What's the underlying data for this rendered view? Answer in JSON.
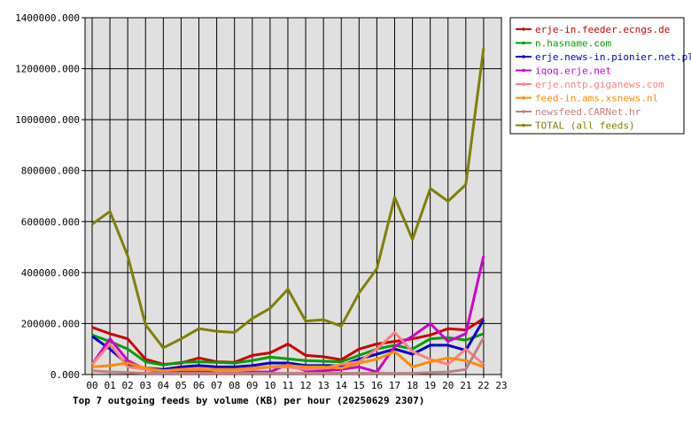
{
  "chart_data": {
    "type": "line",
    "title": "Top 7 outgoing feeds by volume (KB) per hour (20250629 2307)",
    "xlabel": "",
    "ylabel": "",
    "categories": [
      "00",
      "01",
      "02",
      "03",
      "04",
      "05",
      "06",
      "07",
      "08",
      "09",
      "10",
      "11",
      "12",
      "13",
      "14",
      "15",
      "16",
      "17",
      "18",
      "19",
      "20",
      "21",
      "22",
      "23"
    ],
    "y_tick_labels": [
      "0.000",
      "200000.000",
      "400000.000",
      "600000.000",
      "800000.000",
      "1000000.000",
      "1200000.000",
      "1400000.000"
    ],
    "ylim": [
      0,
      1400000
    ],
    "grid": true,
    "legend_position": "top-right",
    "plot_background": "#e0e0e0",
    "series": [
      {
        "name": "erje-in.feeder.ecngs.de",
        "color": "#cc0000",
        "values": [
          185000,
          160000,
          140000,
          60000,
          40000,
          45000,
          65000,
          50000,
          48000,
          75000,
          85000,
          120000,
          75000,
          70000,
          58000,
          100000,
          120000,
          130000,
          140000,
          155000,
          180000,
          175000,
          220000,
          null
        ]
      },
      {
        "name": "n.hasname.com",
        "color": "#00a000",
        "values": [
          155000,
          130000,
          100000,
          50000,
          38000,
          48000,
          50000,
          48000,
          45000,
          55000,
          68000,
          62000,
          55000,
          52000,
          50000,
          75000,
          100000,
          115000,
          100000,
          140000,
          145000,
          135000,
          160000,
          null
        ]
      },
      {
        "name": "erje.news-in.pionier.net.pl",
        "color": "#0000cc",
        "values": [
          150000,
          100000,
          40000,
          25000,
          20000,
          30000,
          35000,
          30000,
          30000,
          35000,
          45000,
          45000,
          35000,
          35000,
          35000,
          60000,
          80000,
          100000,
          80000,
          115000,
          115000,
          95000,
          215000,
          null
        ]
      },
      {
        "name": "iqoq.erje.net",
        "color": "#cc00cc",
        "values": [
          40000,
          140000,
          55000,
          20000,
          10000,
          10000,
          10000,
          10000,
          10000,
          10000,
          10000,
          40000,
          15000,
          15000,
          20000,
          30000,
          10000,
          110000,
          150000,
          200000,
          130000,
          160000,
          465000,
          null
        ]
      },
      {
        "name": "erje.nntp.giganews.com",
        "color": "#ff8080",
        "values": [
          40000,
          120000,
          30000,
          20000,
          15000,
          20000,
          25000,
          15000,
          15000,
          20000,
          30000,
          30000,
          20000,
          25000,
          40000,
          50000,
          100000,
          165000,
          90000,
          60000,
          40000,
          100000,
          40000,
          null
        ]
      },
      {
        "name": "feed-in.ams.xsnews.nl",
        "color": "#ff8c00",
        "values": [
          30000,
          35000,
          45000,
          25000,
          15000,
          20000,
          20000,
          20000,
          20000,
          25000,
          30000,
          35000,
          30000,
          30000,
          25000,
          45000,
          60000,
          90000,
          30000,
          50000,
          65000,
          55000,
          30000,
          null
        ]
      },
      {
        "name": "newsfeed.CARNet.hr",
        "color": "#c08080",
        "values": [
          15000,
          10000,
          8000,
          5000,
          5000,
          5000,
          5000,
          5000,
          5000,
          5000,
          5000,
          5000,
          5000,
          5000,
          5000,
          5000,
          5000,
          5000,
          5000,
          8000,
          10000,
          20000,
          145000,
          null
        ]
      },
      {
        "name": "TOTAL (all feeds)",
        "color": "#808000",
        "values": [
          590000,
          640000,
          465000,
          195000,
          105000,
          140000,
          180000,
          170000,
          165000,
          220000,
          260000,
          335000,
          210000,
          215000,
          190000,
          320000,
          415000,
          695000,
          530000,
          730000,
          680000,
          745000,
          1280000,
          null
        ]
      }
    ]
  }
}
